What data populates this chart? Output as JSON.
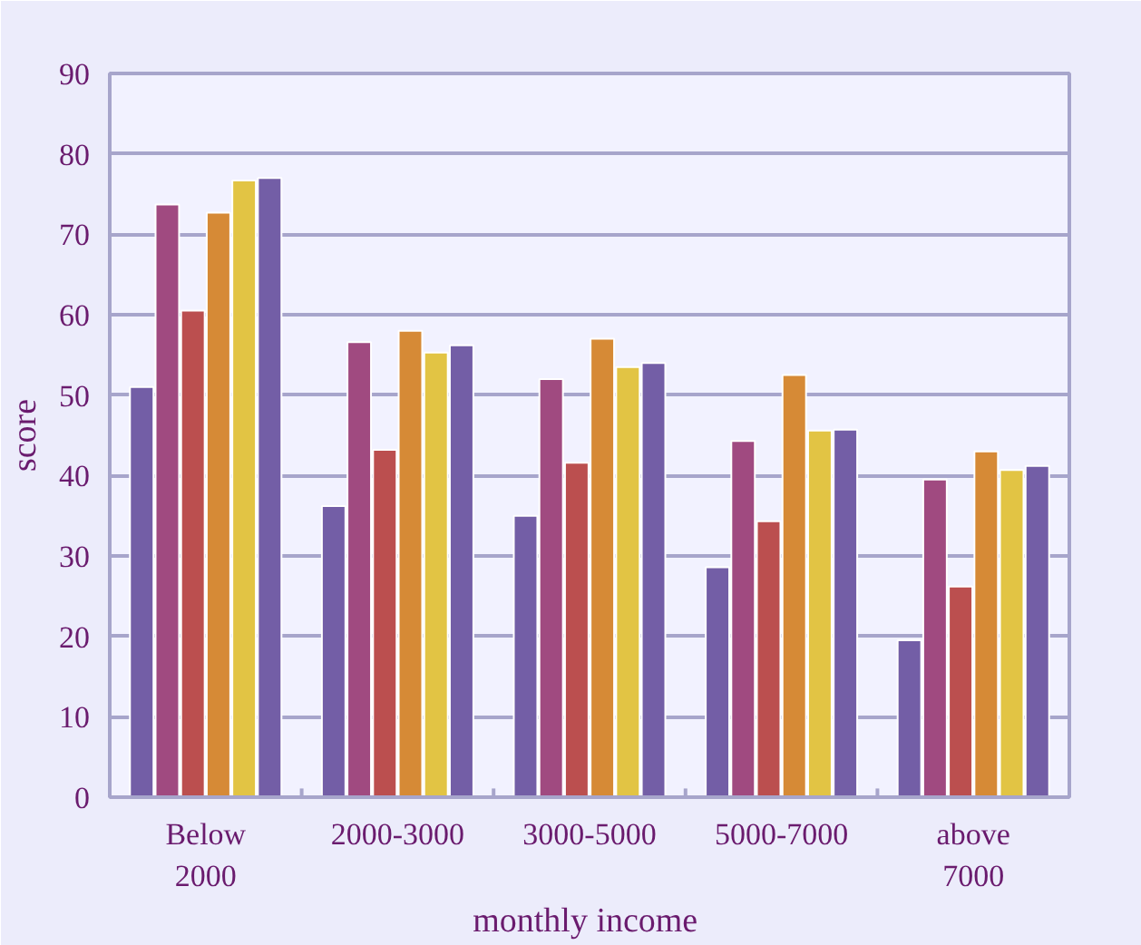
{
  "chart_data": {
    "type": "bar",
    "xlabel": "monthly  income",
    "ylabel": "score",
    "categories": [
      "Below\n2000",
      "2000-3000",
      "3000-5000",
      "5000-7000",
      "above\n7000"
    ],
    "series": [
      {
        "color": "#735ea6",
        "values": [
          51,
          36.2,
          35,
          28.6,
          19.5
        ]
      },
      {
        "color": "#a04a80",
        "values": [
          73.7,
          56.6,
          52,
          44.3,
          39.5
        ]
      },
      {
        "color": "#bb4f4f",
        "values": [
          60.5,
          43.2,
          41.6,
          34.3,
          26.2
        ]
      },
      {
        "color": "#d68a36",
        "values": [
          72.7,
          58,
          57,
          52.5,
          43
        ]
      },
      {
        "color": "#e2c444",
        "values": [
          76.7,
          55.3,
          53.5,
          45.6,
          40.7
        ]
      },
      {
        "color": "#735ea6",
        "values": [
          77,
          56.2,
          54,
          45.7,
          41.2
        ]
      }
    ],
    "ylim": [
      0,
      90
    ],
    "yticks": [
      0,
      10,
      20,
      30,
      40,
      50,
      60,
      70,
      80,
      90
    ],
    "grid": "y"
  }
}
